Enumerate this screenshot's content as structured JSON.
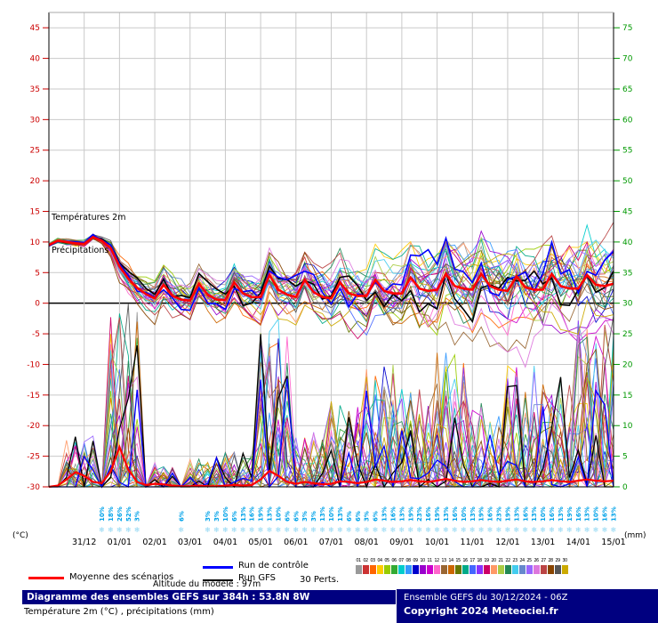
{
  "colors": {
    "mean": "#ff0000",
    "control": "#0000ff",
    "gfs": "#000000",
    "axis_left": "#cc0000",
    "axis_right": "#009900",
    "grid": "#c9c9c9",
    "zero_line": "#000000",
    "snow_pct": "#00a2e8",
    "snowflake": "#8ed6f2",
    "navy": "#000080",
    "copyright": "#ffffff"
  },
  "chart": {
    "left_axis": {
      "unit": "(°C)",
      "ticks": [
        "45",
        "40",
        "35",
        "30",
        "25",
        "20",
        "15",
        "10",
        "5",
        "0",
        "-5",
        "-10",
        "-15",
        "-20",
        "-25",
        "-30"
      ]
    },
    "right_axis": {
      "unit": "(mm)",
      "ticks": [
        "75",
        "70",
        "65",
        "60",
        "55",
        "50",
        "45",
        "40",
        "35",
        "30",
        "25",
        "20",
        "15",
        "10",
        "5",
        "0"
      ]
    },
    "x_axis": {
      "dates": [
        "31/12",
        "01/01",
        "02/01",
        "03/01",
        "04/01",
        "05/01",
        "06/01",
        "07/01",
        "08/01",
        "09/01",
        "10/01",
        "11/01",
        "12/01",
        "13/01",
        "14/01",
        "15/01"
      ]
    },
    "annotations": {
      "temp": "Températures 2m",
      "precip": "Précipitations"
    },
    "snowflake_glyph": "❄",
    "snow_probs": [
      [
        6,
        "10%"
      ],
      [
        7,
        "18%"
      ],
      [
        8,
        "26%"
      ],
      [
        9,
        "52%"
      ],
      [
        10,
        "3%"
      ],
      [
        15,
        "6%"
      ],
      [
        18,
        "3%"
      ],
      [
        19,
        "3%"
      ],
      [
        20,
        "10%"
      ],
      [
        21,
        "6%"
      ],
      [
        22,
        "13%"
      ],
      [
        23,
        "16%"
      ],
      [
        24,
        "19%"
      ],
      [
        25,
        "13%"
      ],
      [
        26,
        "10%"
      ],
      [
        27,
        "6%"
      ],
      [
        28,
        "6%"
      ],
      [
        29,
        "3%"
      ],
      [
        30,
        "3%"
      ],
      [
        31,
        "13%"
      ],
      [
        32,
        "10%"
      ],
      [
        33,
        "13%"
      ],
      [
        34,
        "6%"
      ],
      [
        35,
        "6%"
      ],
      [
        36,
        "3%"
      ],
      [
        37,
        "6%"
      ],
      [
        38,
        "13%"
      ],
      [
        39,
        "16%"
      ],
      [
        40,
        "13%"
      ],
      [
        41,
        "19%"
      ],
      [
        42,
        "23%"
      ],
      [
        43,
        "16%"
      ],
      [
        44,
        "19%"
      ],
      [
        45,
        "13%"
      ],
      [
        46,
        "16%"
      ],
      [
        47,
        "10%"
      ],
      [
        48,
        "13%"
      ],
      [
        49,
        "19%"
      ],
      [
        50,
        "16%"
      ],
      [
        51,
        "23%"
      ],
      [
        52,
        "19%"
      ],
      [
        53,
        "13%"
      ],
      [
        54,
        "16%"
      ],
      [
        55,
        "13%"
      ],
      [
        56,
        "10%"
      ],
      [
        57,
        "16%"
      ],
      [
        58,
        "13%"
      ],
      [
        59,
        "19%"
      ],
      [
        60,
        "16%"
      ],
      [
        61,
        "13%"
      ],
      [
        62,
        "10%"
      ],
      [
        63,
        "16%"
      ],
      [
        64,
        "13%"
      ]
    ]
  },
  "chart_data": {
    "type": "line",
    "title": "Diagramme des ensembles GEFS sur 384h : 53.8N 8W",
    "x_hours_step": 6,
    "n_steps": 65,
    "forecast_hours": 384,
    "ylim_temp": [
      -30,
      47.5
    ],
    "ylim_precip": [
      0,
      75
    ],
    "temp_mean": [
      9.5,
      10.2,
      10.0,
      9.8,
      9.7,
      10.8,
      10.2,
      9.0,
      6.0,
      4.0,
      2.5,
      1.5,
      0.8,
      3.0,
      1.2,
      0.6,
      0.4,
      3.2,
      1.4,
      0.6,
      0.5,
      3.4,
      1.6,
      1.0,
      1.0,
      4.6,
      2.2,
      1.4,
      1.0,
      3.8,
      1.8,
      1.0,
      0.8,
      3.4,
      1.6,
      1.2,
      1.2,
      3.8,
      2.0,
      1.6,
      1.6,
      4.2,
      2.4,
      2.0,
      2.2,
      4.8,
      2.8,
      2.4,
      2.2,
      4.8,
      2.8,
      2.2,
      2.0,
      4.4,
      2.6,
      2.2,
      2.2,
      4.8,
      2.8,
      2.4,
      2.4,
      4.6,
      3.0,
      2.8,
      3.2
    ],
    "temp_spread": [
      0.4,
      0.4,
      0.5,
      0.5,
      0.5,
      0.5,
      0.6,
      1.2,
      1.8,
      2.2,
      2.4,
      2.5,
      2.6,
      2.6,
      2.7,
      2.8,
      2.8,
      2.9,
      3.0,
      3.0,
      3.1,
      3.1,
      3.2,
      3.3,
      3.4,
      3.4,
      3.5,
      3.6,
      3.7,
      3.8,
      3.9,
      4.0,
      4.1,
      4.2,
      4.4,
      4.5,
      4.6,
      4.8,
      4.9,
      5.0,
      5.2,
      5.3,
      5.4,
      5.5,
      5.6,
      5.8,
      5.9,
      6.0,
      6.1,
      6.2,
      6.2,
      6.3,
      6.4,
      6.5,
      6.5,
      6.6,
      6.7,
      6.8,
      6.9,
      7.0,
      7.0,
      7.0,
      7.0,
      7.0,
      7.0
    ],
    "precip_mean": [
      0,
      0.2,
      1.2,
      2.4,
      1.8,
      0.8,
      0.6,
      2.5,
      6.5,
      2.8,
      0.8,
      0.3,
      0.5,
      0.4,
      0.2,
      0.1,
      0.1,
      0.2,
      0.1,
      0.1,
      0.2,
      0.3,
      0.2,
      0.3,
      1.2,
      2.6,
      1.8,
      0.8,
      0.5,
      0.8,
      0.6,
      0.4,
      0.5,
      0.9,
      0.8,
      0.6,
      0.8,
      1.2,
      1.0,
      0.8,
      0.9,
      1.1,
      0.9,
      0.8,
      1.0,
      1.3,
      1.0,
      0.8,
      0.9,
      1.1,
      0.9,
      0.8,
      1.0,
      1.2,
      0.9,
      0.8,
      0.9,
      1.1,
      0.9,
      0.8,
      1.0,
      1.2,
      1.0,
      0.9,
      1.0
    ],
    "precip_events": [
      {
        "start": 2,
        "end": 5,
        "max": 9
      },
      {
        "start": 7,
        "end": 10,
        "max": 30
      },
      {
        "start": 12,
        "end": 14,
        "max": 4
      },
      {
        "start": 16,
        "end": 19,
        "max": 5
      },
      {
        "start": 20,
        "end": 23,
        "max": 6
      },
      {
        "start": 24,
        "end": 27,
        "max": 28
      },
      {
        "start": 28,
        "end": 31,
        "max": 9
      },
      {
        "start": 32,
        "end": 35,
        "max": 14
      },
      {
        "start": 36,
        "end": 39,
        "max": 20
      },
      {
        "start": 40,
        "end": 43,
        "max": 16
      },
      {
        "start": 44,
        "end": 47,
        "max": 22
      },
      {
        "start": 48,
        "end": 51,
        "max": 14
      },
      {
        "start": 52,
        "end": 55,
        "max": 20
      },
      {
        "start": 56,
        "end": 59,
        "max": 18
      },
      {
        "start": 60,
        "end": 64,
        "max": 28
      }
    ],
    "n_members": 30,
    "seed": 20241230,
    "member_colors": [
      "#999999",
      "#cc3333",
      "#ff6600",
      "#ffcc00",
      "#99cc00",
      "#33aa33",
      "#00cccc",
      "#3399ff",
      "#0000cc",
      "#9900cc",
      "#cc00cc",
      "#ff66cc",
      "#996633",
      "#cc6600",
      "#667700",
      "#00aa88",
      "#4466ff",
      "#8833ff",
      "#cc0066",
      "#ff9966",
      "#aacc44",
      "#228855",
      "#44ccee",
      "#6688cc",
      "#9966ff",
      "#dd77dd",
      "#bb4444",
      "#884400",
      "#555555",
      "#ccaa00"
    ]
  },
  "legend": {
    "mean": "Moyenne des scénarios",
    "control": "Run de contrôle",
    "gfs": "Run GFS",
    "perts": "30 Perts.",
    "altitude": "Altitude du modele : 97m",
    "member_numbers": [
      "01",
      "02",
      "03",
      "04",
      "05",
      "06",
      "07",
      "08",
      "09",
      "10",
      "11",
      "12",
      "13",
      "14",
      "15",
      "16",
      "17",
      "18",
      "19",
      "20",
      "21",
      "22",
      "23",
      "24",
      "25",
      "26",
      "27",
      "28",
      "29",
      "30"
    ]
  },
  "footer": {
    "title": "Diagramme des ensembles GEFS sur 384h : 53.8N 8W",
    "subtitle": "Température 2m (°C) , précipitations (mm)",
    "run": "Ensemble GEFS du 30/12/2024 - 06Z",
    "copyright": "Copyright 2024 Meteociel.fr"
  }
}
